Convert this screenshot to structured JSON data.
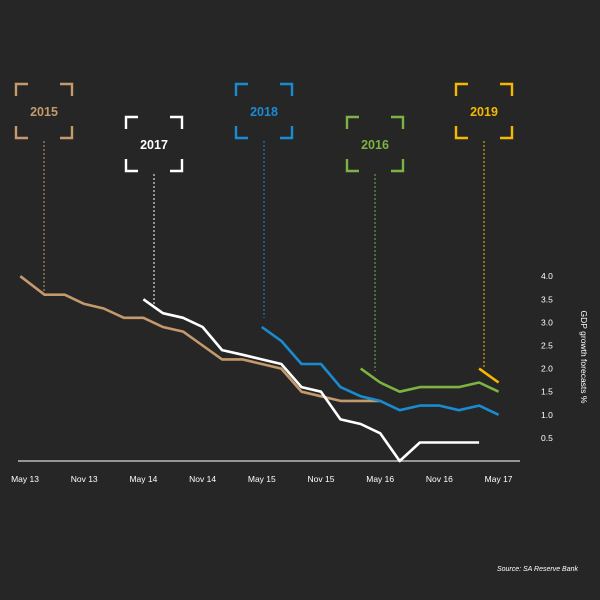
{
  "chart_data": {
    "type": "line",
    "ylabel": "GDP growth forecasts %",
    "ylim": [
      0,
      4.0
    ],
    "y_ticks": [
      "4.0",
      "3.5",
      "3.0",
      "2.5",
      "2.0",
      "1.5",
      "1.0",
      "0.5"
    ],
    "x_ticks": [
      "May 13",
      "Nov 13",
      "May 14",
      "Nov 14",
      "May 15",
      "Nov 15",
      "May 16",
      "Nov 16",
      "May 17"
    ],
    "x_range": [
      0,
      8.4
    ],
    "grid": false,
    "legend": "labeled boxes above each series",
    "series": [
      {
        "name": "2015",
        "color": "#c49a6c",
        "x": [
          -0.08,
          0.33,
          0.67,
          1.0,
          1.33,
          1.67,
          2.0,
          2.33,
          2.67,
          3.0,
          3.33,
          3.67,
          4.0,
          4.33,
          4.67,
          5.0,
          5.33,
          5.67,
          6.0
        ],
        "y": [
          4.0,
          3.6,
          3.6,
          3.4,
          3.3,
          3.1,
          3.1,
          2.9,
          2.8,
          2.5,
          2.2,
          2.2,
          2.1,
          2.0,
          1.5,
          1.4,
          1.3,
          1.3,
          1.3
        ]
      },
      {
        "name": "2017",
        "color": "#ffffff",
        "x": [
          2.0,
          2.33,
          2.67,
          3.0,
          3.33,
          3.67,
          4.0,
          4.33,
          4.67,
          5.0,
          5.33,
          5.67,
          6.0,
          6.33,
          6.67,
          7.0,
          7.33,
          7.67
        ],
        "y": [
          3.5,
          3.2,
          3.1,
          2.9,
          2.4,
          2.3,
          2.2,
          2.1,
          1.6,
          1.5,
          0.9,
          0.8,
          0.6,
          0.0,
          0.4,
          0.4,
          0.4,
          0.4
        ]
      },
      {
        "name": "2018",
        "color": "#1a8bd0",
        "x": [
          4.0,
          4.33,
          4.67,
          5.0,
          5.33,
          5.67,
          6.0,
          6.33,
          6.67,
          7.0,
          7.33,
          7.67,
          8.0
        ],
        "y": [
          2.9,
          2.6,
          2.1,
          2.1,
          1.6,
          1.4,
          1.3,
          1.1,
          1.2,
          1.2,
          1.1,
          1.2,
          1.0
        ]
      },
      {
        "name": "2016",
        "color": "#7cb342",
        "x": [
          5.67,
          6.0,
          6.33,
          6.67,
          7.0,
          7.33,
          7.67,
          8.0
        ],
        "y": [
          2.0,
          1.7,
          1.5,
          1.6,
          1.6,
          1.6,
          1.7,
          1.5
        ]
      },
      {
        "name": "2019",
        "color": "#f5b800",
        "x": [
          7.67,
          8.0
        ],
        "y": [
          2.0,
          1.7
        ]
      }
    ]
  },
  "source": "Source: SA Reserve Bank"
}
